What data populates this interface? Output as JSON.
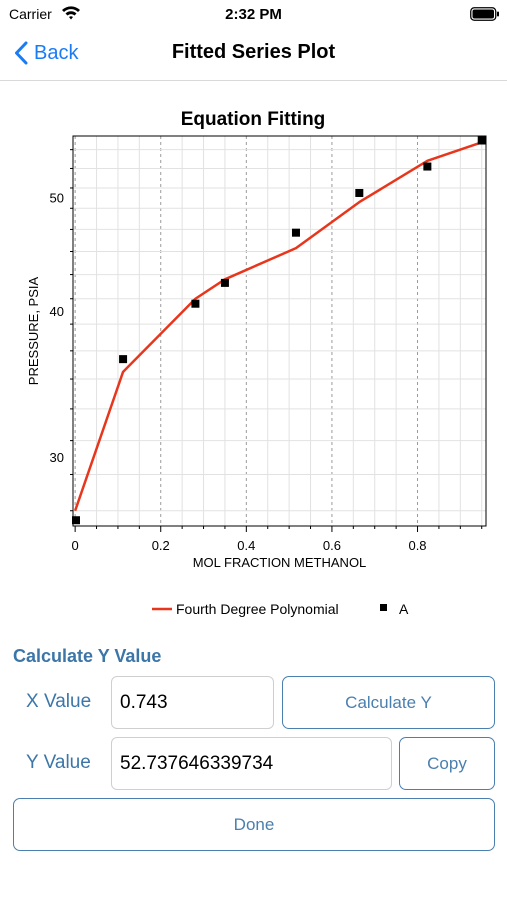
{
  "status_bar": {
    "carrier": "Carrier",
    "time": "2:32 PM"
  },
  "nav": {
    "back_label": "Back",
    "title": "Fitted Series Plot"
  },
  "chart_data": {
    "type": "line",
    "title": "Equation Fitting",
    "xlabel": "MOL FRACTION METHANOL",
    "ylabel": "PRESSURE, PSIA",
    "xlim": [
      -0.005,
      0.96
    ],
    "ylim": [
      26.2,
      56.5
    ],
    "y_scale": "log",
    "x_ticks": [
      0,
      0.2,
      0.4,
      0.6,
      0.8
    ],
    "x_tick_labels": [
      "0",
      "0.2",
      "0.4",
      "0.6",
      "0.8"
    ],
    "y_ticks": [
      30,
      40,
      50
    ],
    "y_tick_labels": [
      "30",
      "40",
      "50"
    ],
    "grid": true,
    "legend_position": "bottom-center",
    "series": [
      {
        "name": "Fourth Degree Polynomial",
        "kind": "line",
        "color": "#e8361c",
        "x": [
          0.0,
          0.112,
          0.281,
          0.35,
          0.516,
          0.664,
          0.823,
          0.95
        ],
        "y": [
          27.0,
          35.5,
          41.0,
          42.6,
          45.3,
          49.6,
          53.8,
          55.8
        ]
      },
      {
        "name": "A",
        "kind": "scatter",
        "color": "#000000",
        "x": [
          0.002,
          0.112,
          0.281,
          0.35,
          0.516,
          0.664,
          0.823,
          0.95
        ],
        "y": [
          26.5,
          36.4,
          40.6,
          42.3,
          46.7,
          50.5,
          53.2,
          56.0
        ]
      }
    ]
  },
  "calculator": {
    "section_title": "Calculate Y Value",
    "x_label": "X Value",
    "x_value": "0.743",
    "y_label": "Y Value",
    "y_value": "52.737646339734",
    "calculate_label": "Calculate Y",
    "copy_label": "Copy",
    "done_label": "Done"
  },
  "colors": {
    "accent": "#3c76a8",
    "ios_blue": "#1a7cf5",
    "fit_line": "#e8361c"
  }
}
